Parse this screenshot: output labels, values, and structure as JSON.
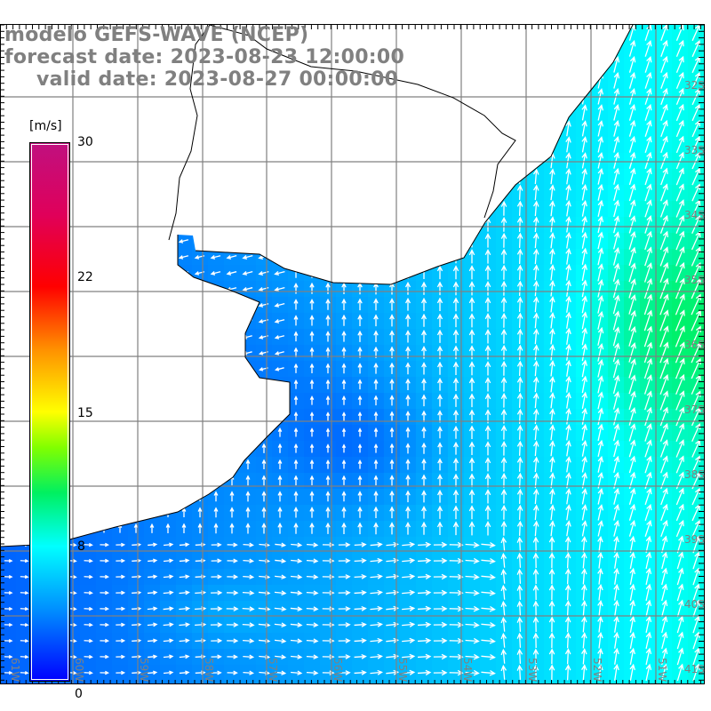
{
  "title": {
    "line1": "modelo GEFS-WAVE (NCEP)",
    "line2": "forecast date: 2023-08-23 12:00:00",
    "line3": "valid date: 2023-08-27 00:00:00"
  },
  "colorbar": {
    "units": "[m/s]",
    "labels": [
      "30",
      "22",
      "15",
      "8",
      "0"
    ],
    "min": 0,
    "max": 30,
    "stops": [
      {
        "v": 0,
        "c": "#0000ff"
      },
      {
        "v": 4,
        "c": "#0090ff"
      },
      {
        "v": 7.5,
        "c": "#00ffff"
      },
      {
        "v": 10.5,
        "c": "#00f060"
      },
      {
        "v": 13,
        "c": "#80ff00"
      },
      {
        "v": 15,
        "c": "#ffff00"
      },
      {
        "v": 18.5,
        "c": "#ff9000"
      },
      {
        "v": 22,
        "c": "#ff0000"
      },
      {
        "v": 26,
        "c": "#e0005a"
      },
      {
        "v": 30,
        "c": "#c0107f"
      }
    ]
  },
  "axes": {
    "longitudes": [
      "61W",
      "60W",
      "59W",
      "58W",
      "57W",
      "56W",
      "55W",
      "54W",
      "53W",
      "52W",
      "51W"
    ],
    "latitudes": [
      "32S",
      "33S",
      "34S",
      "35S",
      "36S",
      "37S",
      "38S",
      "39S",
      "40S",
      "41S"
    ]
  },
  "colors": {
    "grid": "#808080",
    "land": "#ffffff",
    "coast": "#000000",
    "arrow": "#ffffff",
    "title": "#808080"
  }
}
